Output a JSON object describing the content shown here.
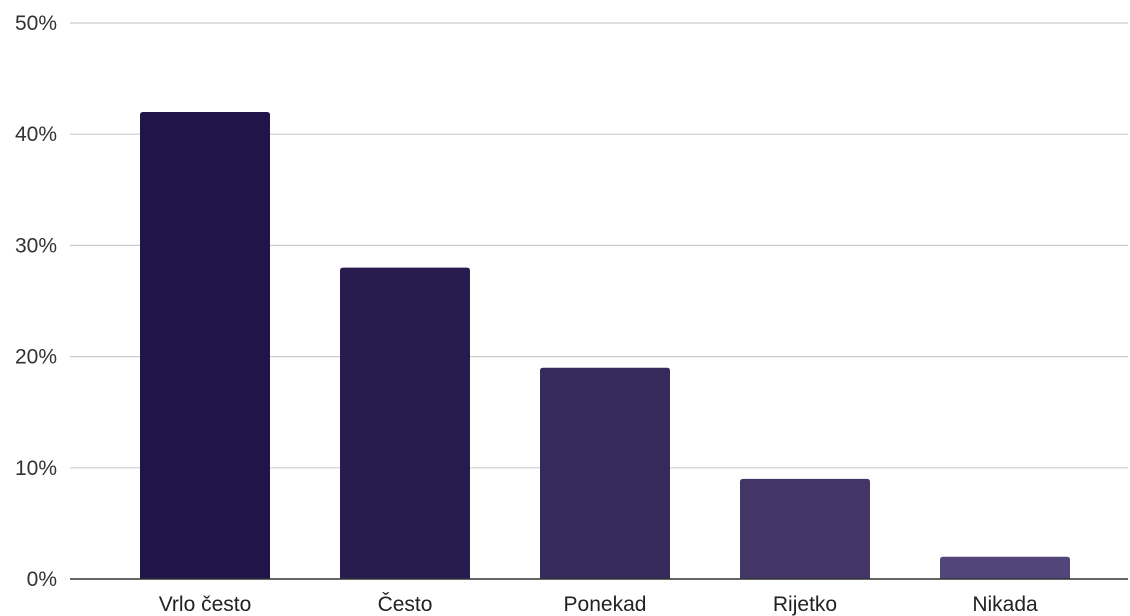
{
  "chart_data": {
    "type": "bar",
    "categories": [
      "Vrlo često",
      "Često",
      "Ponekad",
      "Rijetko",
      "Nikada"
    ],
    "values": [
      42,
      28,
      19,
      9,
      2
    ],
    "value_unit": "%",
    "ylim": [
      0,
      50
    ],
    "yticks": [
      0,
      10,
      20,
      30,
      40,
      50
    ],
    "ytick_labels": [
      "0%",
      "10%",
      "20%",
      "30%",
      "40%",
      "50%"
    ],
    "title": "",
    "xlabel": "",
    "ylabel": "",
    "grid": true,
    "legend": "none",
    "bar_colors": [
      "#201449",
      "#281c4f",
      "#36295b",
      "#433667",
      "#524579"
    ]
  }
}
